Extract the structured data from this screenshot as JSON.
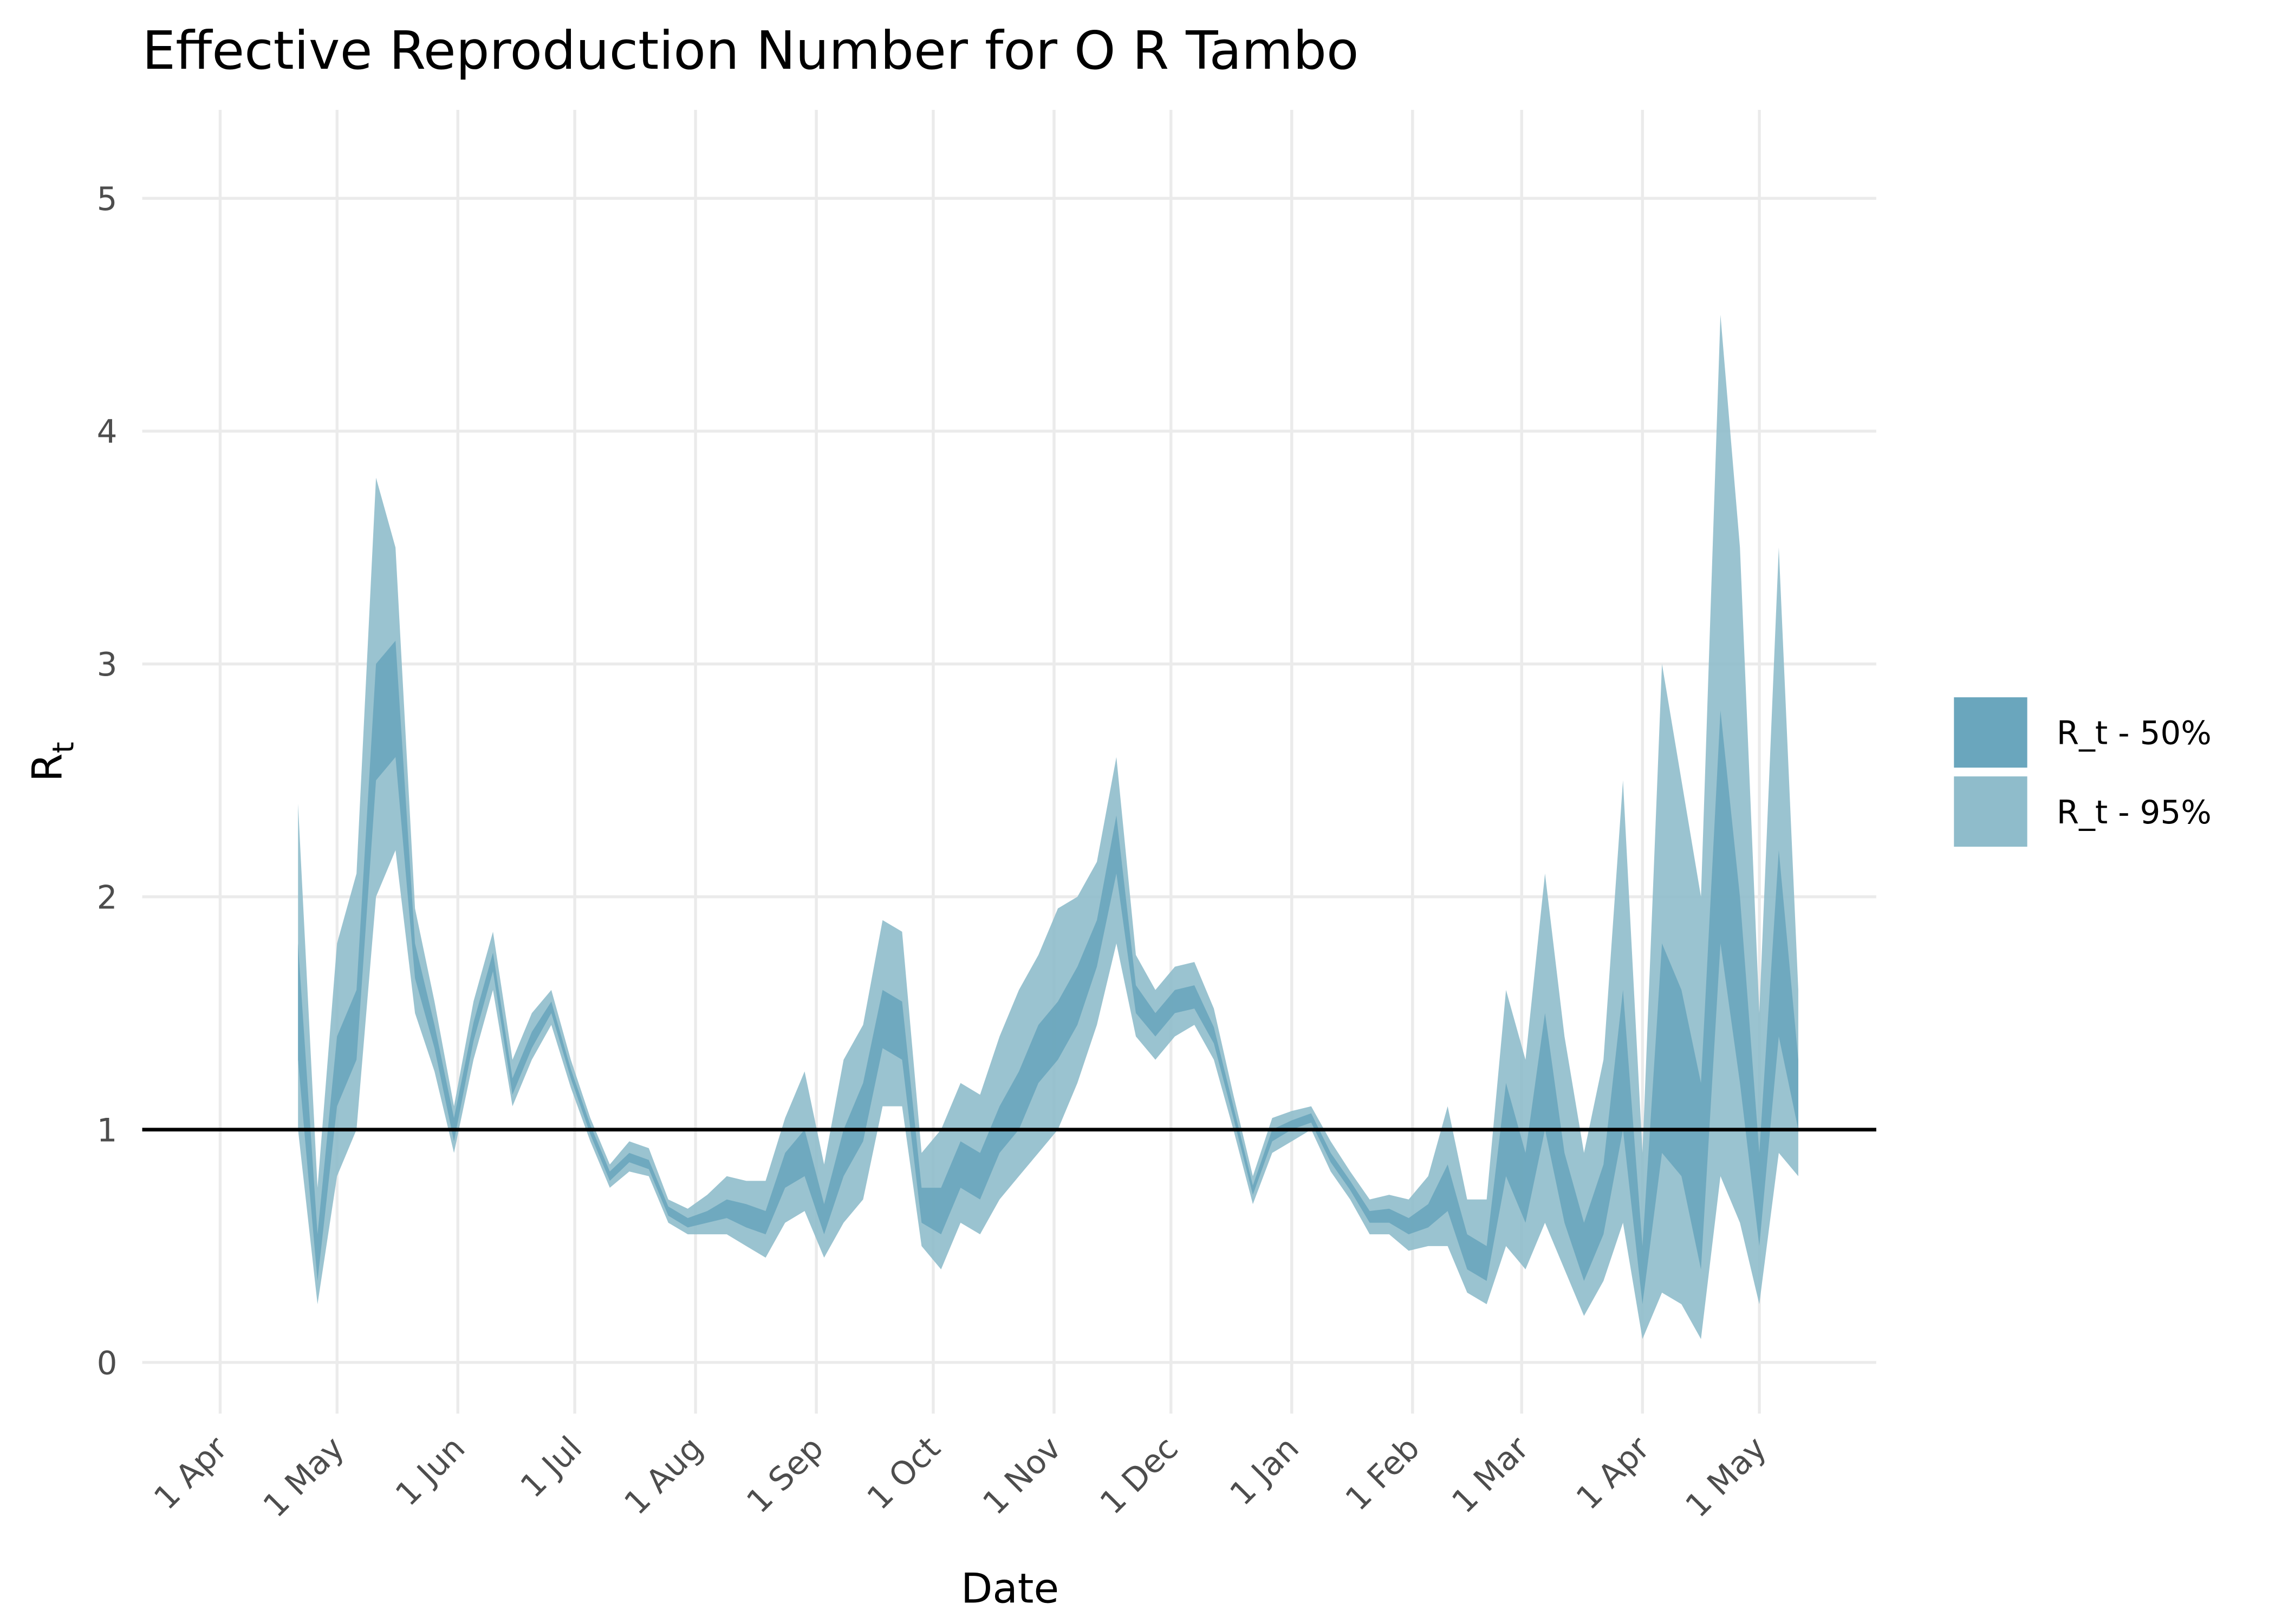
{
  "chart_data": {
    "type": "ribbon",
    "title": "Effective Reproduction Number for O R Tambo",
    "x_label": "Date",
    "y_label": "R",
    "y_label_subscript": "t",
    "xlim": [
      -20,
      425
    ],
    "ylim": [
      -0.22,
      5.38
    ],
    "xticks": [
      {
        "value": 0,
        "label": "1 Apr"
      },
      {
        "value": 30,
        "label": "1 May"
      },
      {
        "value": 61,
        "label": "1 Jun"
      },
      {
        "value": 91,
        "label": "1 Jul"
      },
      {
        "value": 122,
        "label": "1 Aug"
      },
      {
        "value": 153,
        "label": "1 Sep"
      },
      {
        "value": 183,
        "label": "1 Oct"
      },
      {
        "value": 214,
        "label": "1 Nov"
      },
      {
        "value": 244,
        "label": "1 Dec"
      },
      {
        "value": 275,
        "label": "1 Jan"
      },
      {
        "value": 306,
        "label": "1 Feb"
      },
      {
        "value": 334,
        "label": "1 Mar"
      },
      {
        "value": 365,
        "label": "1 Apr"
      },
      {
        "value": 395,
        "label": "1 May"
      }
    ],
    "yticks": [
      0,
      1,
      2,
      3,
      4,
      5
    ],
    "grid": true,
    "hline": 1,
    "hline_color": "#000000",
    "legend_position": "right",
    "x": [
      20,
      25,
      30,
      35,
      40,
      45,
      50,
      55,
      60,
      65,
      70,
      75,
      80,
      85,
      90,
      95,
      100,
      105,
      110,
      115,
      120,
      125,
      130,
      135,
      140,
      145,
      150,
      155,
      160,
      165,
      170,
      175,
      180,
      185,
      190,
      195,
      200,
      205,
      210,
      215,
      220,
      225,
      230,
      235,
      240,
      245,
      250,
      255,
      260,
      265,
      270,
      275,
      280,
      285,
      290,
      295,
      300,
      305,
      310,
      315,
      320,
      325,
      330,
      335,
      340,
      345,
      350,
      355,
      360,
      365,
      370,
      375,
      380,
      385,
      390,
      395,
      400,
      405
    ],
    "series": [
      {
        "name": "R_t - 95%",
        "color": "#8fbccb",
        "lower": [
          1.0,
          0.25,
          0.8,
          1.0,
          2.0,
          2.2,
          1.5,
          1.25,
          0.9,
          1.3,
          1.6,
          1.1,
          1.3,
          1.45,
          1.18,
          0.95,
          0.75,
          0.82,
          0.8,
          0.6,
          0.55,
          0.55,
          0.55,
          0.5,
          0.45,
          0.6,
          0.65,
          0.45,
          0.6,
          0.7,
          1.1,
          1.1,
          0.5,
          0.4,
          0.6,
          0.55,
          0.7,
          0.8,
          0.9,
          1.0,
          1.2,
          1.45,
          1.8,
          1.4,
          1.3,
          1.4,
          1.45,
          1.3,
          1.0,
          0.68,
          0.9,
          0.95,
          1.0,
          0.82,
          0.7,
          0.55,
          0.55,
          0.48,
          0.5,
          0.5,
          0.3,
          0.25,
          0.5,
          0.4,
          0.6,
          0.4,
          0.2,
          0.35,
          0.6,
          0.1,
          0.3,
          0.25,
          0.1,
          0.8,
          0.6,
          0.25,
          0.9,
          0.8
        ],
        "upper": [
          2.4,
          0.75,
          1.8,
          2.1,
          3.8,
          3.5,
          1.95,
          1.55,
          1.1,
          1.55,
          1.85,
          1.3,
          1.5,
          1.6,
          1.3,
          1.05,
          0.85,
          0.95,
          0.92,
          0.7,
          0.66,
          0.72,
          0.8,
          0.78,
          0.78,
          1.05,
          1.25,
          0.85,
          1.3,
          1.45,
          1.9,
          1.85,
          0.9,
          1.0,
          1.2,
          1.15,
          1.4,
          1.6,
          1.75,
          1.95,
          2.0,
          2.15,
          2.6,
          1.75,
          1.6,
          1.7,
          1.72,
          1.52,
          1.15,
          0.8,
          1.05,
          1.08,
          1.1,
          0.95,
          0.82,
          0.7,
          0.72,
          0.7,
          0.8,
          1.1,
          0.7,
          0.7,
          1.6,
          1.3,
          2.1,
          1.4,
          0.9,
          1.3,
          2.5,
          0.9,
          3.0,
          2.5,
          2.0,
          4.5,
          3.5,
          1.5,
          3.5,
          1.6
        ]
      },
      {
        "name": "R_t - 50%",
        "color": "#6aa6bd",
        "lower": [
          1.3,
          0.35,
          1.1,
          1.3,
          2.5,
          2.6,
          1.65,
          1.35,
          0.95,
          1.38,
          1.68,
          1.15,
          1.35,
          1.5,
          1.22,
          0.98,
          0.78,
          0.86,
          0.83,
          0.63,
          0.58,
          0.6,
          0.62,
          0.58,
          0.55,
          0.75,
          0.8,
          0.55,
          0.8,
          0.95,
          1.35,
          1.3,
          0.6,
          0.55,
          0.75,
          0.7,
          0.9,
          1.0,
          1.2,
          1.3,
          1.45,
          1.7,
          2.1,
          1.5,
          1.4,
          1.5,
          1.52,
          1.37,
          1.05,
          0.72,
          0.95,
          1.0,
          1.03,
          0.86,
          0.74,
          0.6,
          0.6,
          0.55,
          0.58,
          0.65,
          0.4,
          0.35,
          0.8,
          0.6,
          1.0,
          0.6,
          0.35,
          0.55,
          1.0,
          0.25,
          0.9,
          0.8,
          0.4,
          1.8,
          1.2,
          0.5,
          1.4,
          1.0
        ],
        "upper": [
          1.8,
          0.55,
          1.4,
          1.6,
          3.0,
          3.1,
          1.8,
          1.45,
          1.05,
          1.46,
          1.76,
          1.22,
          1.42,
          1.55,
          1.26,
          1.02,
          0.82,
          0.9,
          0.87,
          0.67,
          0.62,
          0.65,
          0.7,
          0.68,
          0.65,
          0.9,
          1.0,
          0.68,
          1.0,
          1.2,
          1.6,
          1.55,
          0.75,
          0.75,
          0.95,
          0.9,
          1.1,
          1.25,
          1.45,
          1.55,
          1.7,
          1.9,
          2.35,
          1.62,
          1.5,
          1.6,
          1.62,
          1.44,
          1.1,
          0.76,
          1.0,
          1.04,
          1.07,
          0.9,
          0.78,
          0.65,
          0.66,
          0.62,
          0.68,
          0.85,
          0.55,
          0.5,
          1.2,
          0.9,
          1.5,
          0.9,
          0.6,
          0.85,
          1.6,
          0.5,
          1.8,
          1.6,
          1.2,
          2.8,
          2.0,
          0.9,
          2.2,
          1.3
        ]
      }
    ]
  }
}
